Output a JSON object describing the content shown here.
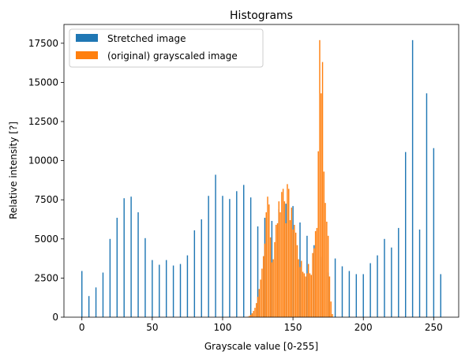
{
  "chart_data": {
    "type": "bar",
    "title": "Histograms",
    "xlabel": "Grayscale value [0-255]",
    "ylabel": "Relative intensity [?]",
    "xlim": [
      -12.75,
      267.75
    ],
    "ylim": [
      0,
      18700
    ],
    "xticks": [
      0,
      50,
      100,
      150,
      200,
      250
    ],
    "yticks": [
      0,
      2500,
      5000,
      7500,
      10000,
      12500,
      15000,
      17500
    ],
    "grid": false,
    "legend_position": "upper-left",
    "series": [
      {
        "name": "Stretched image",
        "color": "#1f77b4",
        "x": [
          0,
          5,
          10,
          15,
          20,
          25,
          30,
          35,
          40,
          45,
          50,
          55,
          60,
          65,
          70,
          75,
          80,
          85,
          90,
          95,
          100,
          105,
          110,
          115,
          120,
          125,
          130,
          135,
          140,
          145,
          150,
          155,
          160,
          165,
          170,
          175,
          180,
          185,
          190,
          195,
          200,
          205,
          210,
          215,
          220,
          225,
          230,
          235,
          240,
          245,
          250,
          255
        ],
        "values": [
          2950,
          1350,
          1900,
          2850,
          5000,
          6350,
          7600,
          7700,
          6700,
          5050,
          3650,
          3350,
          3650,
          3300,
          3400,
          3950,
          5550,
          6250,
          7750,
          9100,
          7750,
          7550,
          8050,
          8450,
          7650,
          5800,
          6350,
          6150,
          6900,
          7250,
          7100,
          6050,
          5200,
          4600,
          3850,
          2850,
          3750,
          3250,
          2950,
          2750,
          2750,
          3450,
          3950,
          5000,
          4450,
          5700,
          10550,
          17700,
          5600,
          14300,
          10800,
          2750
        ]
      },
      {
        "name": "(original) grayscaled image",
        "color": "#ff7f0e",
        "x": [
          118,
          119,
          120,
          121,
          122,
          123,
          124,
          125,
          126,
          127,
          128,
          129,
          130,
          131,
          132,
          133,
          134,
          135,
          136,
          137,
          138,
          139,
          140,
          141,
          142,
          143,
          144,
          145,
          146,
          147,
          148,
          149,
          150,
          151,
          152,
          153,
          154,
          155,
          156,
          157,
          158,
          159,
          160,
          161,
          162,
          163,
          164,
          165,
          166,
          167,
          168,
          169,
          170,
          171,
          172,
          173,
          174,
          175,
          176,
          177,
          178
        ],
        "values": [
          30,
          80,
          150,
          250,
          400,
          600,
          900,
          1300,
          1800,
          2400,
          3100,
          3900,
          4700,
          6700,
          7700,
          7200,
          5100,
          3500,
          3700,
          4800,
          5900,
          6000,
          7400,
          6700,
          8000,
          8200,
          7400,
          6000,
          8500,
          8200,
          6200,
          7000,
          5600,
          5900,
          5400,
          4600,
          3700,
          3200,
          3600,
          2900,
          2800,
          2600,
          2800,
          3400,
          2800,
          2700,
          4100,
          4400,
          5500,
          5700,
          10600,
          17700,
          14300,
          16300,
          9300,
          7300,
          6100,
          5200,
          2600,
          1000,
          200
        ]
      }
    ]
  }
}
